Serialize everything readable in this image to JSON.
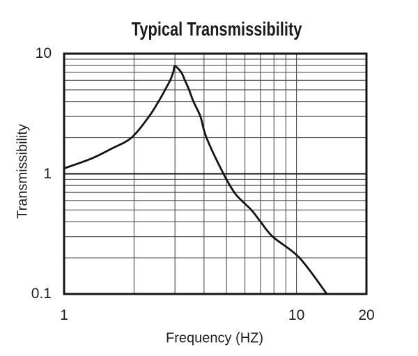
{
  "chart_data": {
    "type": "line",
    "title": "Typical Transmissibility",
    "xlabel": "Frequency (HZ)",
    "ylabel": "Transmissibility",
    "x_scale": "log",
    "y_scale": "log",
    "xlim": [
      1,
      20
    ],
    "ylim": [
      0.1,
      10
    ],
    "x_ticks": [
      {
        "value": 1,
        "label": "1"
      },
      {
        "value": 10,
        "label": "10"
      },
      {
        "value": 20,
        "label": "20"
      }
    ],
    "y_ticks": [
      {
        "value": 10,
        "label": "10"
      },
      {
        "value": 1,
        "label": "1"
      },
      {
        "value": 0.1,
        "label": "0.1"
      }
    ],
    "x_gridlines": [
      2,
      3,
      4,
      5,
      6,
      7,
      8,
      9,
      10
    ],
    "y_gridlines_minor": [
      0.2,
      0.3,
      0.4,
      0.5,
      0.6,
      0.7,
      0.8,
      0.9,
      2,
      3,
      4,
      5,
      6,
      7,
      8,
      9
    ],
    "y_gridlines_major": [
      1
    ],
    "grid_on": true,
    "legend": "none",
    "colors": {
      "curve": "#141414",
      "grid_minor": "#4d4d4d",
      "grid_major": "#141414",
      "border": "#141414",
      "text": "#1e1e1e",
      "background": "#ffffff"
    },
    "series": [
      {
        "name": "typical transmissibility curve",
        "peak": {
          "frequency_hz": 3.0,
          "transmissibility": 7.85
        },
        "points": [
          [
            1.0,
            1.11
          ],
          [
            1.3,
            1.33
          ],
          [
            1.6,
            1.62
          ],
          [
            1.95,
            2.0
          ],
          [
            2.32,
            3.0
          ],
          [
            2.55,
            4.0
          ],
          [
            2.72,
            5.0
          ],
          [
            2.86,
            6.0
          ],
          [
            2.95,
            7.0
          ],
          [
            3.0,
            7.85
          ],
          [
            3.19,
            7.0
          ],
          [
            3.31,
            6.0
          ],
          [
            3.45,
            5.0
          ],
          [
            3.6,
            4.0
          ],
          [
            3.86,
            3.0
          ],
          [
            4.1,
            2.0
          ],
          [
            4.85,
            1.0
          ],
          [
            5.4,
            0.7
          ],
          [
            5.8,
            0.6
          ],
          [
            6.4,
            0.5
          ],
          [
            7.0,
            0.4
          ],
          [
            7.9,
            0.3
          ],
          [
            10.3,
            0.2
          ],
          [
            13.5,
            0.1
          ]
        ]
      }
    ]
  }
}
